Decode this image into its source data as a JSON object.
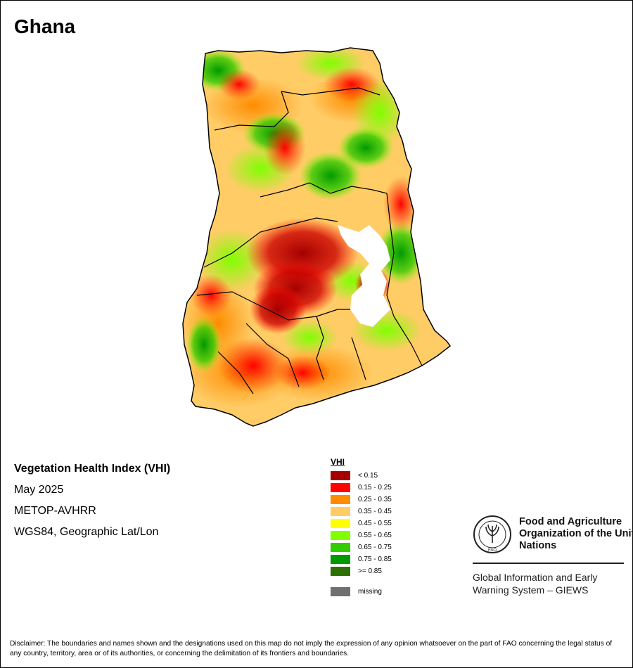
{
  "title": "Ghana",
  "map_info": {
    "index_name": "Vegetation Health Index (VHI)",
    "period": "May 2025",
    "sensor": "METOP-AVHRR",
    "projection": "WGS84, Geographic Lat/Lon"
  },
  "legend": {
    "title": "VHI",
    "items": [
      {
        "label": "< 0.15",
        "color": "#a50000"
      },
      {
        "label": "0.15 - 0.25",
        "color": "#ff0000"
      },
      {
        "label": "0.25 - 0.35",
        "color": "#ff8c00"
      },
      {
        "label": "0.35 - 0.45",
        "color": "#ffcc66"
      },
      {
        "label": "0.45 - 0.55",
        "color": "#ffff00"
      },
      {
        "label": "0.55 - 0.65",
        "color": "#80ff00"
      },
      {
        "label": "0.65 - 0.75",
        "color": "#33cc00"
      },
      {
        "label": "0.75 - 0.85",
        "color": "#009900"
      },
      {
        "label": ">= 0.85",
        "color": "#2e7000"
      }
    ],
    "missing": {
      "label": "missing",
      "color": "#707070"
    }
  },
  "fao": {
    "logo_text": "FAO",
    "name": "Food and Agriculture Organization of the United Nations",
    "giews": "Global Information and Early Warning System – GIEWS"
  },
  "disclaimer": "Disclaimer: The boundaries and names shown and the designations used on this map do not imply the expression of any opinion whatsoever on the part of FAO concerning the legal status of any country, territory, area or of its authorities, or concerning the delimitation of its frontiers and boundaries."
}
